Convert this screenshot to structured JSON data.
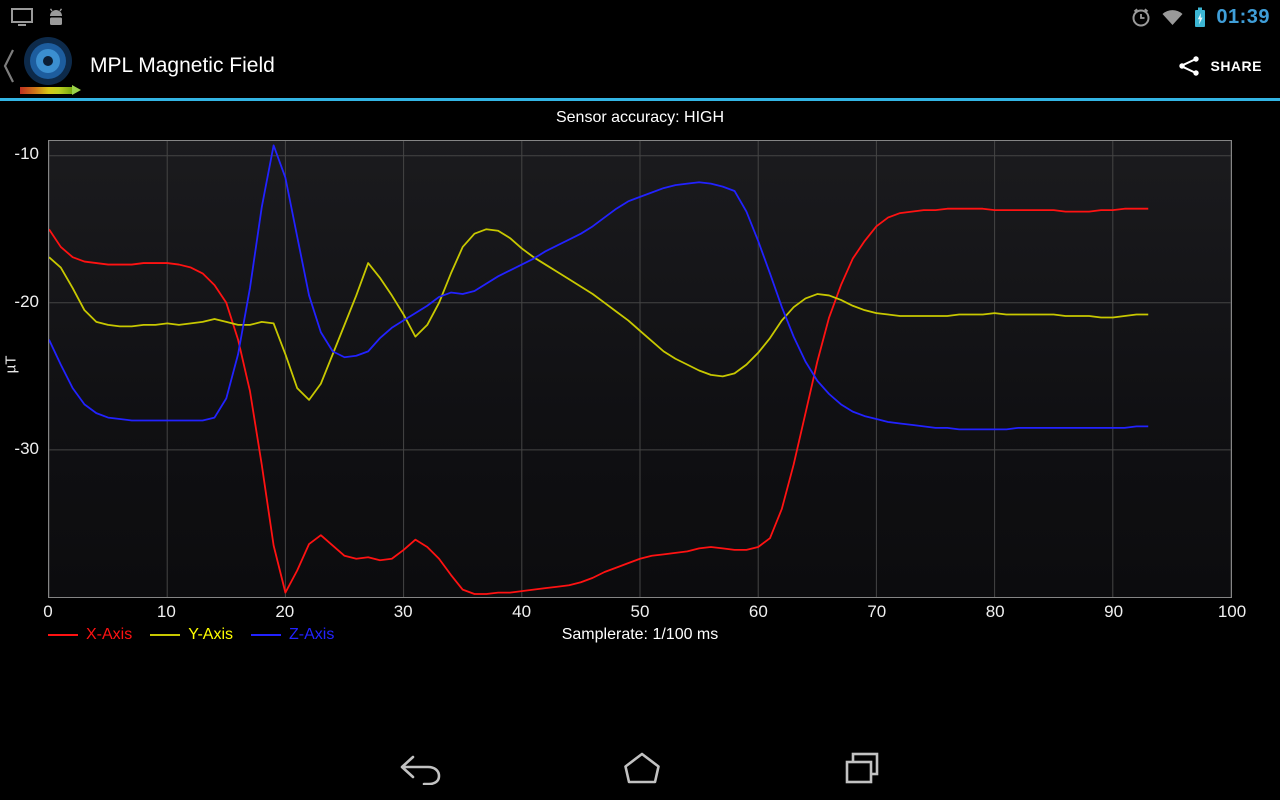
{
  "colors": {
    "accent": "#33b5e5",
    "clock_blue": "#3f9ed8",
    "battery_teal": "#3cb6d4",
    "grid": "#454545",
    "plot_border": "#858585"
  },
  "status_bar": {
    "time": "01:39"
  },
  "action_bar": {
    "title": "MPL Magnetic Field",
    "share_label": "SHARE"
  },
  "content": {
    "accuracy_text": "Sensor accuracy: HIGH"
  },
  "chart_data": {
    "type": "line",
    "title": "",
    "xlabel": "Samplerate: 1/100 ms",
    "ylabel": "µT",
    "xlim": [
      0,
      100
    ],
    "ylim": [
      -40,
      -9
    ],
    "x_ticks": [
      0,
      10,
      20,
      30,
      40,
      50,
      60,
      70,
      80,
      90,
      100
    ],
    "y_ticks": [
      -10,
      -20,
      -30
    ],
    "x_start": 0,
    "x_step": 1,
    "grid": true,
    "legend_position": "bottom-left",
    "series": [
      {
        "name": "X-Axis",
        "color": "#ff1212",
        "label_color": "#ff1212",
        "values": [
          -15.0,
          -16.2,
          -16.9,
          -17.2,
          -17.3,
          -17.4,
          -17.4,
          -17.4,
          -17.3,
          -17.3,
          -17.3,
          -17.4,
          -17.6,
          -18.0,
          -18.8,
          -20.0,
          -22.5,
          -26.0,
          -31.0,
          -36.5,
          -39.7,
          -38.2,
          -36.4,
          -35.8,
          -36.5,
          -37.2,
          -37.4,
          -37.3,
          -37.5,
          -37.4,
          -36.8,
          -36.1,
          -36.6,
          -37.4,
          -38.5,
          -39.5,
          -39.8,
          -39.8,
          -39.7,
          -39.7,
          -39.6,
          -39.5,
          -39.4,
          -39.3,
          -39.2,
          -39.0,
          -38.7,
          -38.3,
          -38.0,
          -37.7,
          -37.4,
          -37.2,
          -37.1,
          -37.0,
          -36.9,
          -36.7,
          -36.6,
          -36.7,
          -36.8,
          -36.8,
          -36.6,
          -36.0,
          -34.0,
          -31.0,
          -27.5,
          -24.0,
          -21.0,
          -18.8,
          -17.0,
          -15.8,
          -14.8,
          -14.2,
          -13.9,
          -13.8,
          -13.7,
          -13.7,
          -13.6,
          -13.6,
          -13.6,
          -13.6,
          -13.7,
          -13.7,
          -13.7,
          -13.7,
          -13.7,
          -13.7,
          -13.8,
          -13.8,
          -13.8,
          -13.7,
          -13.7,
          -13.6,
          -13.6,
          -13.6
        ]
      },
      {
        "name": "Y-Axis",
        "color": "#c8c800",
        "label_color": "#ffff00",
        "values": [
          -16.9,
          -17.6,
          -19.0,
          -20.5,
          -21.3,
          -21.5,
          -21.6,
          -21.6,
          -21.5,
          -21.5,
          -21.4,
          -21.5,
          -21.4,
          -21.3,
          -21.1,
          -21.3,
          -21.5,
          -21.5,
          -21.3,
          -21.4,
          -23.5,
          -25.8,
          -26.6,
          -25.5,
          -23.5,
          -21.5,
          -19.5,
          -17.3,
          -18.3,
          -19.5,
          -20.8,
          -22.3,
          -21.5,
          -20.0,
          -18.0,
          -16.2,
          -15.3,
          -15.0,
          -15.1,
          -15.6,
          -16.3,
          -16.9,
          -17.4,
          -17.9,
          -18.4,
          -18.9,
          -19.4,
          -20.0,
          -20.6,
          -21.2,
          -21.9,
          -22.6,
          -23.3,
          -23.8,
          -24.2,
          -24.6,
          -24.9,
          -25.0,
          -24.8,
          -24.2,
          -23.4,
          -22.4,
          -21.2,
          -20.3,
          -19.7,
          -19.4,
          -19.5,
          -19.8,
          -20.2,
          -20.5,
          -20.7,
          -20.8,
          -20.9,
          -20.9,
          -20.9,
          -20.9,
          -20.9,
          -20.8,
          -20.8,
          -20.8,
          -20.7,
          -20.8,
          -20.8,
          -20.8,
          -20.8,
          -20.8,
          -20.9,
          -20.9,
          -20.9,
          -21.0,
          -21.0,
          -20.9,
          -20.8,
          -20.8
        ]
      },
      {
        "name": "Z-Axis",
        "color": "#2222ff",
        "label_color": "#2222ff",
        "values": [
          -22.5,
          -24.2,
          -25.8,
          -26.9,
          -27.5,
          -27.8,
          -27.9,
          -28.0,
          -28.0,
          -28.0,
          -28.0,
          -28.0,
          -28.0,
          -28.0,
          -27.8,
          -26.5,
          -23.5,
          -19.0,
          -13.5,
          -9.3,
          -11.5,
          -15.5,
          -19.5,
          -22.0,
          -23.3,
          -23.7,
          -23.6,
          -23.3,
          -22.4,
          -21.7,
          -21.2,
          -20.7,
          -20.2,
          -19.6,
          -19.3,
          -19.4,
          -19.2,
          -18.7,
          -18.2,
          -17.8,
          -17.4,
          -17.0,
          -16.5,
          -16.1,
          -15.7,
          -15.3,
          -14.8,
          -14.2,
          -13.6,
          -13.1,
          -12.8,
          -12.5,
          -12.2,
          -12.0,
          -11.9,
          -11.8,
          -11.9,
          -12.1,
          -12.4,
          -13.8,
          -15.8,
          -18.0,
          -20.3,
          -22.3,
          -24.0,
          -25.3,
          -26.2,
          -26.9,
          -27.4,
          -27.7,
          -27.9,
          -28.1,
          -28.2,
          -28.3,
          -28.4,
          -28.5,
          -28.5,
          -28.6,
          -28.6,
          -28.6,
          -28.6,
          -28.6,
          -28.5,
          -28.5,
          -28.5,
          -28.5,
          -28.5,
          -28.5,
          -28.5,
          -28.5,
          -28.5,
          -28.5,
          -28.4,
          -28.4
        ]
      }
    ]
  }
}
